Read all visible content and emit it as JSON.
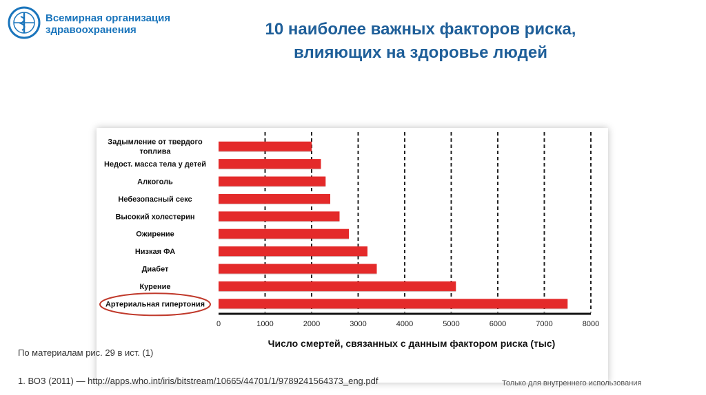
{
  "header": {
    "org_line1": "Всемирная организация",
    "org_line2": "здравоохранения",
    "title_line1": "10 наиболее важных факторов риска,",
    "title_line2": "влияющих на здоровье людей"
  },
  "chart_data": {
    "type": "bar",
    "orientation": "horizontal",
    "categories": [
      "Задымление от твердого топлива",
      "Недост. масса тела у детей",
      "Алкоголь",
      "Небезопасный секс",
      "Высокий холестерин",
      "Ожирение",
      "Низкая ФА",
      "Диабет",
      "Курение",
      "Артериальная гипертония"
    ],
    "values": [
      2000,
      2200,
      2300,
      2400,
      2600,
      2800,
      3200,
      3400,
      5100,
      7500
    ],
    "xlabel": "Число смертей, связанных с данным фактором риска (тыс)",
    "xlim": [
      0,
      8000
    ],
    "xticks": [
      "0",
      "1000",
      "2000",
      "3000",
      "4000",
      "5000",
      "6000",
      "7000",
      "8000"
    ],
    "grid": "vertical dashed",
    "bar_color": "#e42a2a",
    "highlighted_category": "Артериальная гипертония",
    "highlight_color": "#c0392b"
  },
  "source_note": "По материалам рис. 29 в ист. (1)",
  "footnote": "1. ВОЗ (2011) — http://apps.who.int/iris/bitstream/10665/44701/1/9789241564373_eng.pdf",
  "internal_use": "Только для внутреннего использования"
}
